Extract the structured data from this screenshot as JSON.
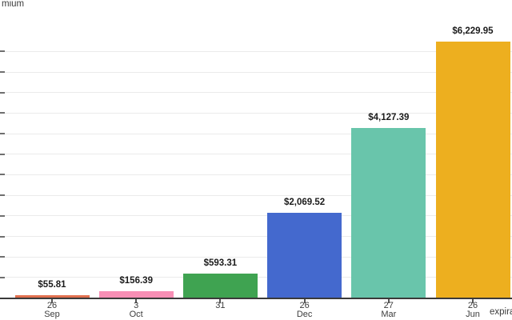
{
  "chart_data": {
    "type": "bar",
    "title": "",
    "y_axis_title_fragment": "mium",
    "x_axis_title_fragment": "expira",
    "categories": [],
    "x_tick_labels": [
      {
        "day": "26",
        "month": "Sep"
      },
      {
        "day": "3",
        "month": "Oct"
      },
      {
        "day": "31",
        "month": ""
      },
      {
        "day": "26",
        "month": "Dec"
      },
      {
        "day": "27",
        "month": "Mar"
      },
      {
        "day": "26",
        "month": "Jun"
      }
    ],
    "values": [
      55.81,
      156.39,
      593.31,
      2069.52,
      4127.39,
      6229.95
    ],
    "value_labels": [
      "$55.81",
      "$156.39",
      "$593.31",
      "$2,069.52",
      "$4,127.39",
      "$6,229.95"
    ],
    "bar_colors": [
      "#E1704F",
      "#F78FB5",
      "#3FA351",
      "#4469CE",
      "#69C5AB",
      "#EDAF1F"
    ],
    "y_grid_step": 500,
    "y_grid_max": 6000,
    "ylim": [
      0,
      6500
    ],
    "y_tick_labels_visible": false,
    "grid": true,
    "legend": "none"
  },
  "colors": {
    "background": "#ffffff",
    "gridline": "#ebebeb",
    "axis_line": "#3a3a3a",
    "y_tick": "#6f6f6f",
    "x_tick": "#555555",
    "axis_text": "#3d3d3d",
    "value_label_text": "#1b1b1b"
  }
}
